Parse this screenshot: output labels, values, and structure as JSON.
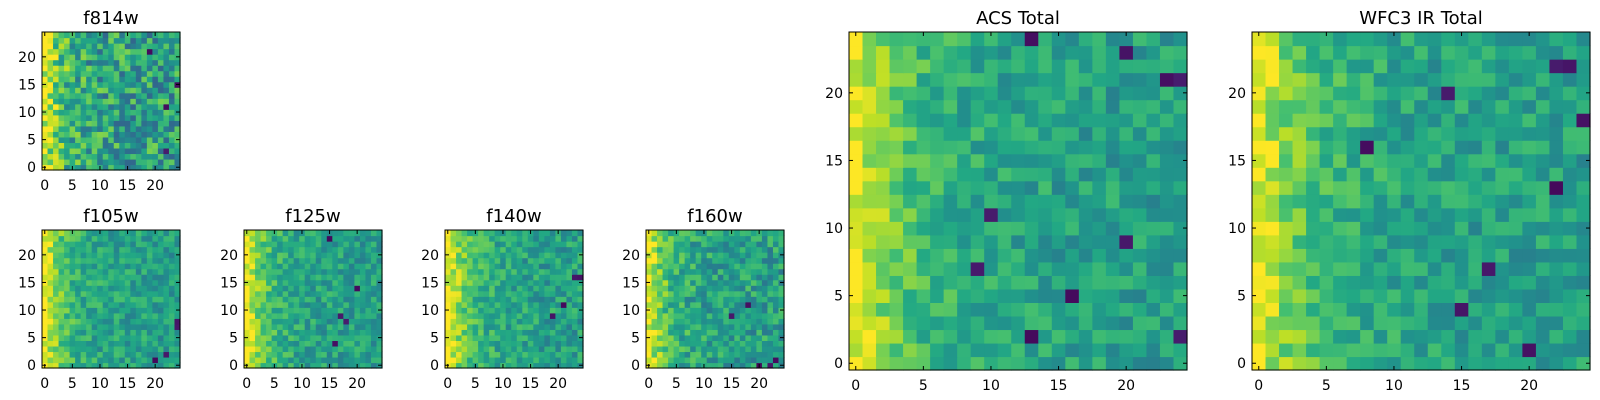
{
  "chart_data": [
    {
      "id": "f814w",
      "type": "heatmap",
      "title": "f814w",
      "n": 25,
      "colormap": "viridis",
      "xlim": [
        0,
        24
      ],
      "ylim": [
        0,
        24
      ],
      "xticks": [
        0,
        5,
        10,
        15,
        20
      ],
      "yticks": [
        0,
        5,
        10,
        15,
        20
      ],
      "edge_ramp": 1.0,
      "edge_width": 3.0,
      "noise_level": 0.24,
      "low_spots": [
        [
          22,
          11
        ],
        [
          22,
          3
        ],
        [
          24,
          15
        ],
        [
          19,
          21
        ]
      ]
    },
    {
      "id": "f105w",
      "type": "heatmap",
      "title": "f105w",
      "n": 25,
      "colormap": "viridis",
      "xlim": [
        0,
        24
      ],
      "ylim": [
        0,
        24
      ],
      "xticks": [
        0,
        5,
        10,
        15,
        20
      ],
      "yticks": [
        0,
        5,
        10,
        15,
        20
      ],
      "edge_ramp": 1.0,
      "edge_width": 3.5,
      "noise_level": 0.14,
      "low_spots": [
        [
          24,
          8
        ],
        [
          24,
          7
        ],
        [
          20,
          1
        ],
        [
          22,
          2
        ]
      ]
    },
    {
      "id": "f125w",
      "type": "heatmap",
      "title": "f125w",
      "n": 25,
      "colormap": "viridis",
      "xlim": [
        0,
        24
      ],
      "ylim": [
        0,
        24
      ],
      "xticks": [
        0,
        5,
        10,
        15,
        20
      ],
      "yticks": [
        0,
        5,
        10,
        15,
        20
      ],
      "edge_ramp": 1.0,
      "edge_width": 3.5,
      "noise_level": 0.14,
      "low_spots": [
        [
          17,
          9
        ],
        [
          16,
          4
        ],
        [
          18,
          8
        ],
        [
          15,
          23
        ],
        [
          20,
          14
        ]
      ]
    },
    {
      "id": "f140w",
      "type": "heatmap",
      "title": "f140w",
      "n": 25,
      "colormap": "viridis",
      "xlim": [
        0,
        24
      ],
      "ylim": [
        0,
        24
      ],
      "xticks": [
        0,
        5,
        10,
        15,
        20
      ],
      "yticks": [
        0,
        5,
        10,
        15,
        20
      ],
      "edge_ramp": 1.0,
      "edge_width": 4.0,
      "noise_level": 0.15,
      "low_spots": [
        [
          23,
          16
        ],
        [
          24,
          16
        ],
        [
          19,
          9
        ],
        [
          21,
          11
        ]
      ]
    },
    {
      "id": "f160w",
      "type": "heatmap",
      "title": "f160w",
      "n": 25,
      "colormap": "viridis",
      "xlim": [
        0,
        24
      ],
      "ylim": [
        0,
        24
      ],
      "xticks": [
        0,
        5,
        10,
        15,
        20
      ],
      "yticks": [
        0,
        5,
        10,
        15,
        20
      ],
      "edge_ramp": 1.0,
      "edge_width": 3.0,
      "noise_level": 0.17,
      "low_spots": [
        [
          22,
          0
        ],
        [
          23,
          1
        ],
        [
          20,
          0
        ],
        [
          18,
          11
        ],
        [
          15,
          9
        ]
      ]
    },
    {
      "id": "acs-total",
      "type": "heatmap",
      "title": "ACS Total",
      "n": 25,
      "colormap": "viridis",
      "xlim": [
        0,
        24
      ],
      "ylim": [
        0,
        24
      ],
      "xticks": [
        0,
        5,
        10,
        15,
        20
      ],
      "yticks": [
        0,
        5,
        10,
        15,
        20
      ],
      "edge_ramp": 0.95,
      "edge_width": 4.0,
      "noise_level": 0.13,
      "low_spots": [
        [
          13,
          24
        ],
        [
          20,
          23
        ],
        [
          23,
          21
        ],
        [
          24,
          21
        ],
        [
          10,
          11
        ],
        [
          9,
          7
        ],
        [
          13,
          2
        ],
        [
          24,
          2
        ],
        [
          20,
          9
        ],
        [
          16,
          5
        ]
      ]
    },
    {
      "id": "wfc3-ir-total",
      "type": "heatmap",
      "title": "WFC3 IR Total",
      "n": 25,
      "colormap": "viridis",
      "xlim": [
        0,
        24
      ],
      "ylim": [
        0,
        24
      ],
      "xticks": [
        0,
        5,
        10,
        15,
        20
      ],
      "yticks": [
        0,
        5,
        10,
        15,
        20
      ],
      "edge_ramp": 0.95,
      "edge_width": 4.0,
      "noise_level": 0.13,
      "low_spots": [
        [
          22,
          22
        ],
        [
          23,
          22
        ],
        [
          14,
          20
        ],
        [
          17,
          7
        ],
        [
          24,
          18
        ],
        [
          15,
          4
        ],
        [
          20,
          1
        ],
        [
          8,
          16
        ],
        [
          22,
          13
        ]
      ]
    }
  ]
}
